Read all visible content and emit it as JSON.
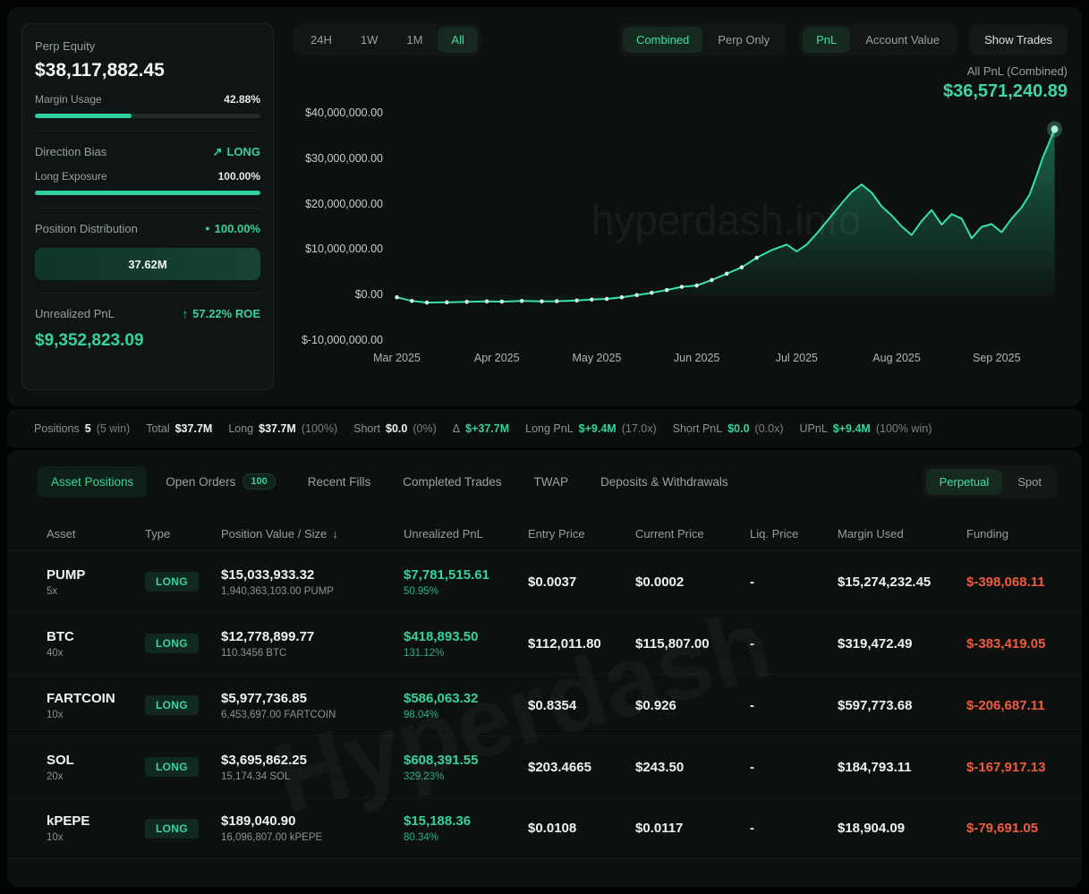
{
  "colors": {
    "accent": "#34d399",
    "accent_bright": "#34e3a4",
    "negative": "#ef5a41",
    "muted": "#96a19b"
  },
  "stats_panel": {
    "perp_equity": {
      "label": "Perp Equity",
      "value": "$38,117,882.45"
    },
    "margin_usage": {
      "label": "Margin Usage",
      "value": "42.88%",
      "pct": 42.88
    },
    "direction_bias": {
      "label": "Direction Bias",
      "value": "LONG"
    },
    "long_exposure": {
      "label": "Long Exposure",
      "value": "100.00%",
      "pct": 100
    },
    "position_distribution": {
      "label": "Position Distribution",
      "value": "100.00%",
      "bar_label": "37.62M"
    },
    "unrealized_pnl": {
      "label": "Unrealized PnL",
      "roe": "57.22% ROE",
      "value": "$9,352,823.09"
    }
  },
  "chart_controls": {
    "time_ranges": [
      {
        "label": "24H"
      },
      {
        "label": "1W"
      },
      {
        "label": "1M"
      },
      {
        "label": "All",
        "active": true
      }
    ],
    "scope": [
      {
        "label": "Combined",
        "active": true
      },
      {
        "label": "Perp Only"
      }
    ],
    "metric": [
      {
        "label": "PnL",
        "active": true
      },
      {
        "label": "Account Value"
      }
    ],
    "show_trades": "Show Trades",
    "caption": "All PnL (Combined)",
    "value": "$36,571,240.89"
  },
  "chart_data": {
    "type": "area",
    "title": "All PnL (Combined)",
    "unit": "USD millions",
    "x_unit": "months since 2025-03-01",
    "x_ticks": [
      "Mar 2025",
      "Apr 2025",
      "May 2025",
      "Jun 2025",
      "Jul 2025",
      "Aug 2025",
      "Sep 2025"
    ],
    "y_tick_labels": [
      "$40,000,000.00",
      "$30,000,000.00",
      "$20,000,000.00",
      "$10,000,000.00",
      "$0.00",
      "$-10,000,000.00"
    ],
    "y_tick_values": [
      40,
      30,
      20,
      10,
      0,
      -10
    ],
    "ylim": [
      -10,
      40
    ],
    "final_value": 36.57,
    "points": [
      [
        0.0,
        -0.4
      ],
      [
        0.15,
        -1.2
      ],
      [
        0.3,
        -1.55
      ],
      [
        0.5,
        -1.5
      ],
      [
        0.7,
        -1.4
      ],
      [
        0.9,
        -1.3
      ],
      [
        1.05,
        -1.35
      ],
      [
        1.25,
        -1.2
      ],
      [
        1.45,
        -1.3
      ],
      [
        1.6,
        -1.25
      ],
      [
        1.8,
        -1.1
      ],
      [
        1.95,
        -0.9
      ],
      [
        2.1,
        -0.75
      ],
      [
        2.25,
        -0.4
      ],
      [
        2.4,
        0.1
      ],
      [
        2.55,
        0.6
      ],
      [
        2.7,
        1.2
      ],
      [
        2.85,
        1.9
      ],
      [
        3.0,
        2.2
      ],
      [
        3.15,
        3.4
      ],
      [
        3.3,
        4.8
      ],
      [
        3.45,
        6.2
      ],
      [
        3.6,
        8.3
      ],
      [
        3.75,
        10.0
      ],
      [
        3.9,
        11.2
      ],
      [
        4.0,
        9.7
      ],
      [
        4.1,
        11.2
      ],
      [
        4.2,
        13.6
      ],
      [
        4.35,
        17.6
      ],
      [
        4.45,
        20.3
      ],
      [
        4.55,
        22.8
      ],
      [
        4.65,
        24.4
      ],
      [
        4.75,
        22.6
      ],
      [
        4.85,
        19.6
      ],
      [
        4.95,
        17.6
      ],
      [
        5.05,
        15.2
      ],
      [
        5.15,
        13.3
      ],
      [
        5.25,
        16.4
      ],
      [
        5.35,
        18.8
      ],
      [
        5.45,
        15.6
      ],
      [
        5.55,
        17.9
      ],
      [
        5.65,
        16.9
      ],
      [
        5.75,
        12.6
      ],
      [
        5.85,
        15.1
      ],
      [
        5.95,
        15.7
      ],
      [
        6.05,
        13.9
      ],
      [
        6.15,
        16.9
      ],
      [
        6.25,
        19.4
      ],
      [
        6.33,
        22.2
      ],
      [
        6.4,
        26.4
      ],
      [
        6.46,
        30.2
      ],
      [
        6.52,
        33.4
      ],
      [
        6.58,
        36.57
      ]
    ]
  },
  "watermarks": {
    "chart": "hyperdash.info",
    "table": "Hyperdash"
  },
  "summary": [
    {
      "label": "Positions",
      "value": "5",
      "extra": "(5 win)"
    },
    {
      "label": "Total",
      "value": "$37.7M"
    },
    {
      "label": "Long",
      "value": "$37.7M",
      "extra": "(100%)"
    },
    {
      "label": "Short",
      "value": "$0.0",
      "extra": "(0%)"
    },
    {
      "label": "Δ",
      "value": "$+37.7M",
      "green": true
    },
    {
      "label": "Long PnL",
      "value": "$+9.4M",
      "extra": "(17.0x)",
      "green": true
    },
    {
      "label": "Short PnL",
      "value": "$0.0",
      "extra": "(0.0x)",
      "green": true
    },
    {
      "label": "UPnL",
      "value": "$+9.4M",
      "extra": "(100% win)",
      "green": true
    }
  ],
  "tabs": [
    {
      "label": "Asset Positions",
      "active": true
    },
    {
      "label": "Open Orders",
      "badge": "100"
    },
    {
      "label": "Recent Fills"
    },
    {
      "label": "Completed Trades"
    },
    {
      "label": "TWAP"
    },
    {
      "label": "Deposits & Withdrawals"
    }
  ],
  "market_tabs": [
    {
      "label": "Perpetual",
      "active": true
    },
    {
      "label": "Spot"
    }
  ],
  "table": {
    "columns": [
      {
        "label": "Asset"
      },
      {
        "label": "Type"
      },
      {
        "label": "Position Value / Size",
        "sort": "desc"
      },
      {
        "label": "Unrealized PnL"
      },
      {
        "label": "Entry Price"
      },
      {
        "label": "Current Price"
      },
      {
        "label": "Liq. Price"
      },
      {
        "label": "Margin Used"
      },
      {
        "label": "Funding"
      }
    ],
    "rows": [
      {
        "asset": "PUMP",
        "leverage": "5x",
        "type": "LONG",
        "value": "$15,033,933.32",
        "size": "1,940,363,103.00 PUMP",
        "upnl": "$7,781,515.61",
        "upnl_pct": "50.95%",
        "entry": "$0.0037",
        "current": "$0.0002",
        "liq": "-",
        "margin": "$15,274,232.45",
        "funding": "$-398,068.11"
      },
      {
        "asset": "BTC",
        "leverage": "40x",
        "type": "LONG",
        "value": "$12,778,899.77",
        "size": "110.3456 BTC",
        "upnl": "$418,893.50",
        "upnl_pct": "131.12%",
        "entry": "$112,011.80",
        "current": "$115,807.00",
        "liq": "-",
        "margin": "$319,472.49",
        "funding": "$-383,419.05"
      },
      {
        "asset": "FARTCOIN",
        "leverage": "10x",
        "type": "LONG",
        "value": "$5,977,736.85",
        "size": "6,453,697.00 FARTCOIN",
        "upnl": "$586,063.32",
        "upnl_pct": "98.04%",
        "entry": "$0.8354",
        "current": "$0.926",
        "liq": "-",
        "margin": "$597,773.68",
        "funding": "$-206,687.11"
      },
      {
        "asset": "SOL",
        "leverage": "20x",
        "type": "LONG",
        "value": "$3,695,862.25",
        "size": "15,174.34 SOL",
        "upnl": "$608,391.55",
        "upnl_pct": "329.23%",
        "entry": "$203.4665",
        "current": "$243.50",
        "liq": "-",
        "margin": "$184,793.11",
        "funding": "$-167,917.13"
      },
      {
        "asset": "kPEPE",
        "leverage": "10x",
        "type": "LONG",
        "value": "$189,040.90",
        "size": "16,096,807.00 kPEPE",
        "upnl": "$15,188.36",
        "upnl_pct": "80.34%",
        "entry": "$0.0108",
        "current": "$0.0117",
        "liq": "-",
        "margin": "$18,904.09",
        "funding": "$-79,691.05"
      }
    ]
  },
  "icons": {
    "trend_up": "↗",
    "arrow_up": "↑",
    "dot": "●",
    "sort_desc": "↓"
  }
}
